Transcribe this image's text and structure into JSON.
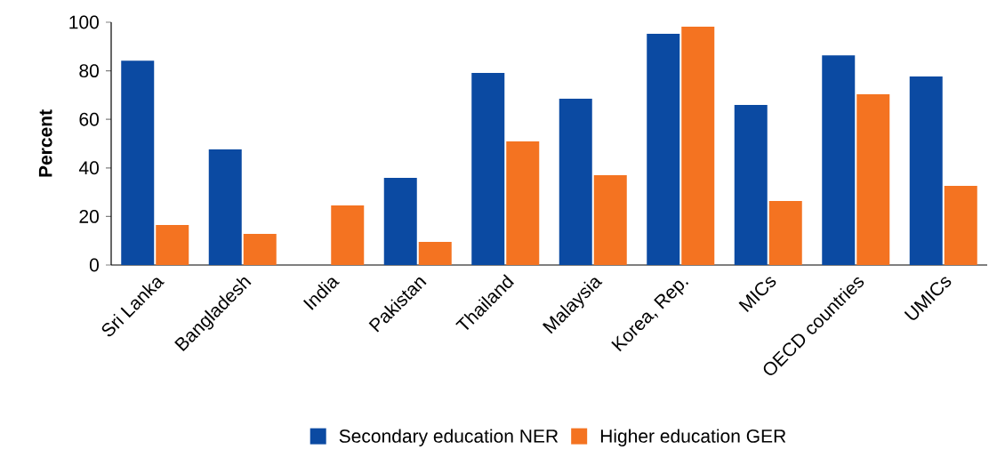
{
  "chart_data": {
    "type": "bar",
    "ylabel": "Percent",
    "categories": [
      "Sri Lanka",
      "Bangladesh",
      "India",
      "Pakistan",
      "Thailand",
      "Malaysia",
      "Korea, Rep.",
      "MICs",
      "OECD countries",
      "UMICs"
    ],
    "series": [
      {
        "name": "Secondary education NER",
        "color": "#0b4aa2",
        "values": [
          84.2,
          47.6,
          null,
          35.9,
          79.1,
          68.5,
          95.2,
          65.9,
          86.4,
          77.7
        ]
      },
      {
        "name": "Higher education GER",
        "color": "#f47321",
        "values": [
          16.5,
          12.8,
          24.5,
          9.5,
          50.9,
          37.0,
          98.2,
          26.4,
          70.3,
          32.6
        ]
      }
    ],
    "ylim": [
      0,
      100
    ],
    "yticks": [
      0,
      20,
      40,
      60,
      80,
      100
    ],
    "legend": "bottom"
  }
}
